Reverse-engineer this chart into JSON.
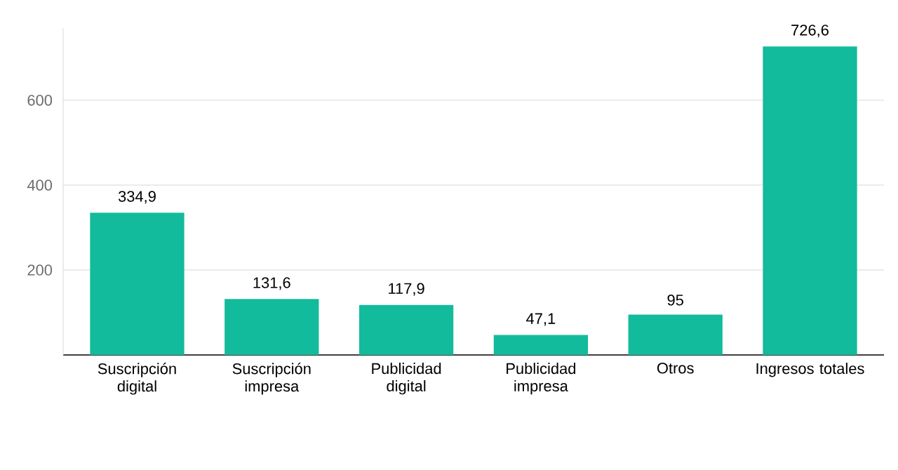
{
  "chart_data": {
    "type": "bar",
    "categories": [
      "Suscripción digital",
      "Suscripción impresa",
      "Publicidad digital",
      "Publicidad impresa",
      "Otros",
      "Ingresos totales"
    ],
    "values": [
      334.9,
      131.6,
      117.9,
      47.1,
      95,
      726.6
    ],
    "value_labels": [
      "334,9",
      "131,6",
      "117,9",
      "47,1",
      "95",
      "726,6"
    ],
    "color": "#12bb9b",
    "ylim": [
      0,
      770
    ],
    "yticks": [
      200,
      400,
      600
    ],
    "grid": "y"
  }
}
